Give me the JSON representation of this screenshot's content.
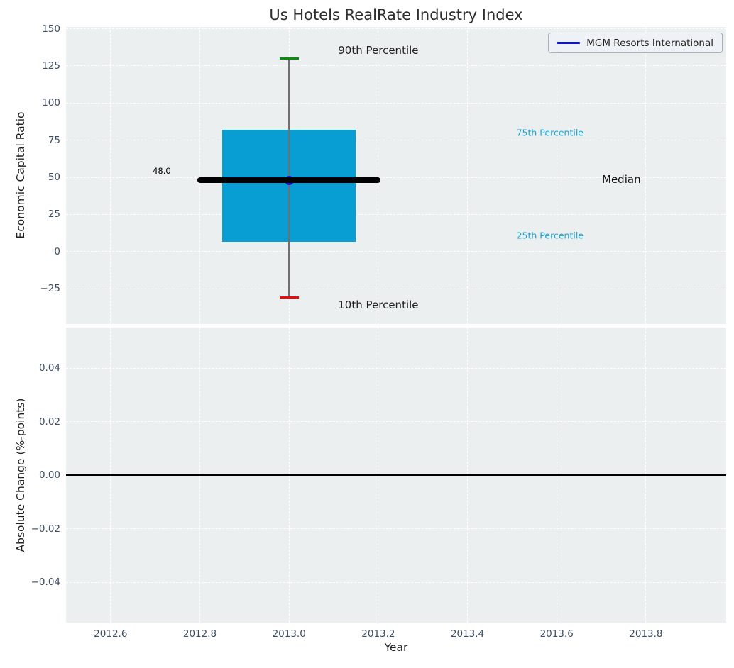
{
  "title": "Us Hotels RealRate Industry Index",
  "legend": {
    "label": "MGM Resorts International",
    "position": "upper right"
  },
  "colors": {
    "plot_bg": "#ebeff0",
    "grid": "#ffffff",
    "tick": "#3d4e63",
    "text": "#212121",
    "title": "#2e2e2e",
    "box_fill": "#089ed3",
    "median": "#000000",
    "whisker": "#707070",
    "cap_90": "#0a8f0a",
    "cap_10": "#e80c0c",
    "point": "#1111e0",
    "annotation_cyan": "#1ba3d1",
    "legend_bg": "#eef1f6",
    "legend_border": "#a9afbb",
    "zero_line": "#000000"
  },
  "chart_data": [
    {
      "type": "box",
      "title": "Us Hotels RealRate Industry Index",
      "ylabel": "Economic Capital Ratio",
      "xlim": [
        2012.5,
        2013.98
      ],
      "ylim": [
        -48.8,
        151.2
      ],
      "grid": true,
      "yticks": {
        "values": [
          150,
          125,
          100,
          75,
          50,
          25,
          0,
          -25
        ],
        "labels": [
          "150",
          "125",
          "100",
          "75",
          "50",
          "25",
          "0",
          "−25"
        ]
      },
      "xgrid_values": [
        2012.6,
        2012.8,
        2013.0,
        2013.2,
        2013.4,
        2013.6,
        2013.8
      ],
      "box": {
        "x": 2013.0,
        "p10": -31,
        "p25": 6.5,
        "median": 48.0,
        "p75": 82,
        "p90": 130,
        "box_x_range": [
          2012.85,
          2013.15
        ],
        "median_x_range": [
          2012.795,
          2013.205
        ],
        "median_label": "48.0"
      },
      "series": [
        {
          "name": "MGM Resorts International",
          "points": [
            [
              2013.0,
              48.0
            ]
          ],
          "marker": "dot"
        }
      ],
      "annotations": [
        {
          "text": "90th Percentile",
          "x": 2013.2,
          "y": 135.5,
          "size": 15,
          "color": "#212121",
          "anchor": "center"
        },
        {
          "text": "10th Percentile",
          "x": 2013.2,
          "y": -36.0,
          "size": 15,
          "color": "#212121",
          "anchor": "center"
        },
        {
          "text": "75th Percentile",
          "x": 2013.585,
          "y": 80.0,
          "size": 12.5,
          "color": "#1ba3d1",
          "anchor": "center"
        },
        {
          "text": "25th Percentile",
          "x": 2013.585,
          "y": 11.0,
          "size": 12.5,
          "color": "#1ba3d1",
          "anchor": "center"
        },
        {
          "text": "Median",
          "x": 2013.745,
          "y": 48.5,
          "size": 15,
          "color": "#111111",
          "anchor": "center"
        },
        {
          "text": "48.0",
          "x": 2012.735,
          "y": 54.5,
          "size": 11.5,
          "color": "#000000",
          "anchor": "right"
        }
      ]
    },
    {
      "type": "line",
      "ylabel": "Absolute Change (%-points)",
      "xlabel": "Year",
      "xlim": [
        2012.5,
        2013.98
      ],
      "ylim": [
        -0.0551,
        0.0551
      ],
      "grid": true,
      "yticks": {
        "values": [
          0.04,
          0.02,
          0.0,
          -0.02,
          -0.04
        ],
        "labels": [
          "0.04",
          "0.02",
          "0.00",
          "−0.02",
          "−0.04"
        ]
      },
      "xticks": {
        "values": [
          2012.6,
          2012.8,
          2013.0,
          2013.2,
          2013.4,
          2013.6,
          2013.8
        ],
        "labels": [
          "2012.6",
          "2012.8",
          "2013.0",
          "2013.2",
          "2013.4",
          "2013.6",
          "2013.8"
        ]
      },
      "zero_line_y": 0.0,
      "series": []
    }
  ]
}
